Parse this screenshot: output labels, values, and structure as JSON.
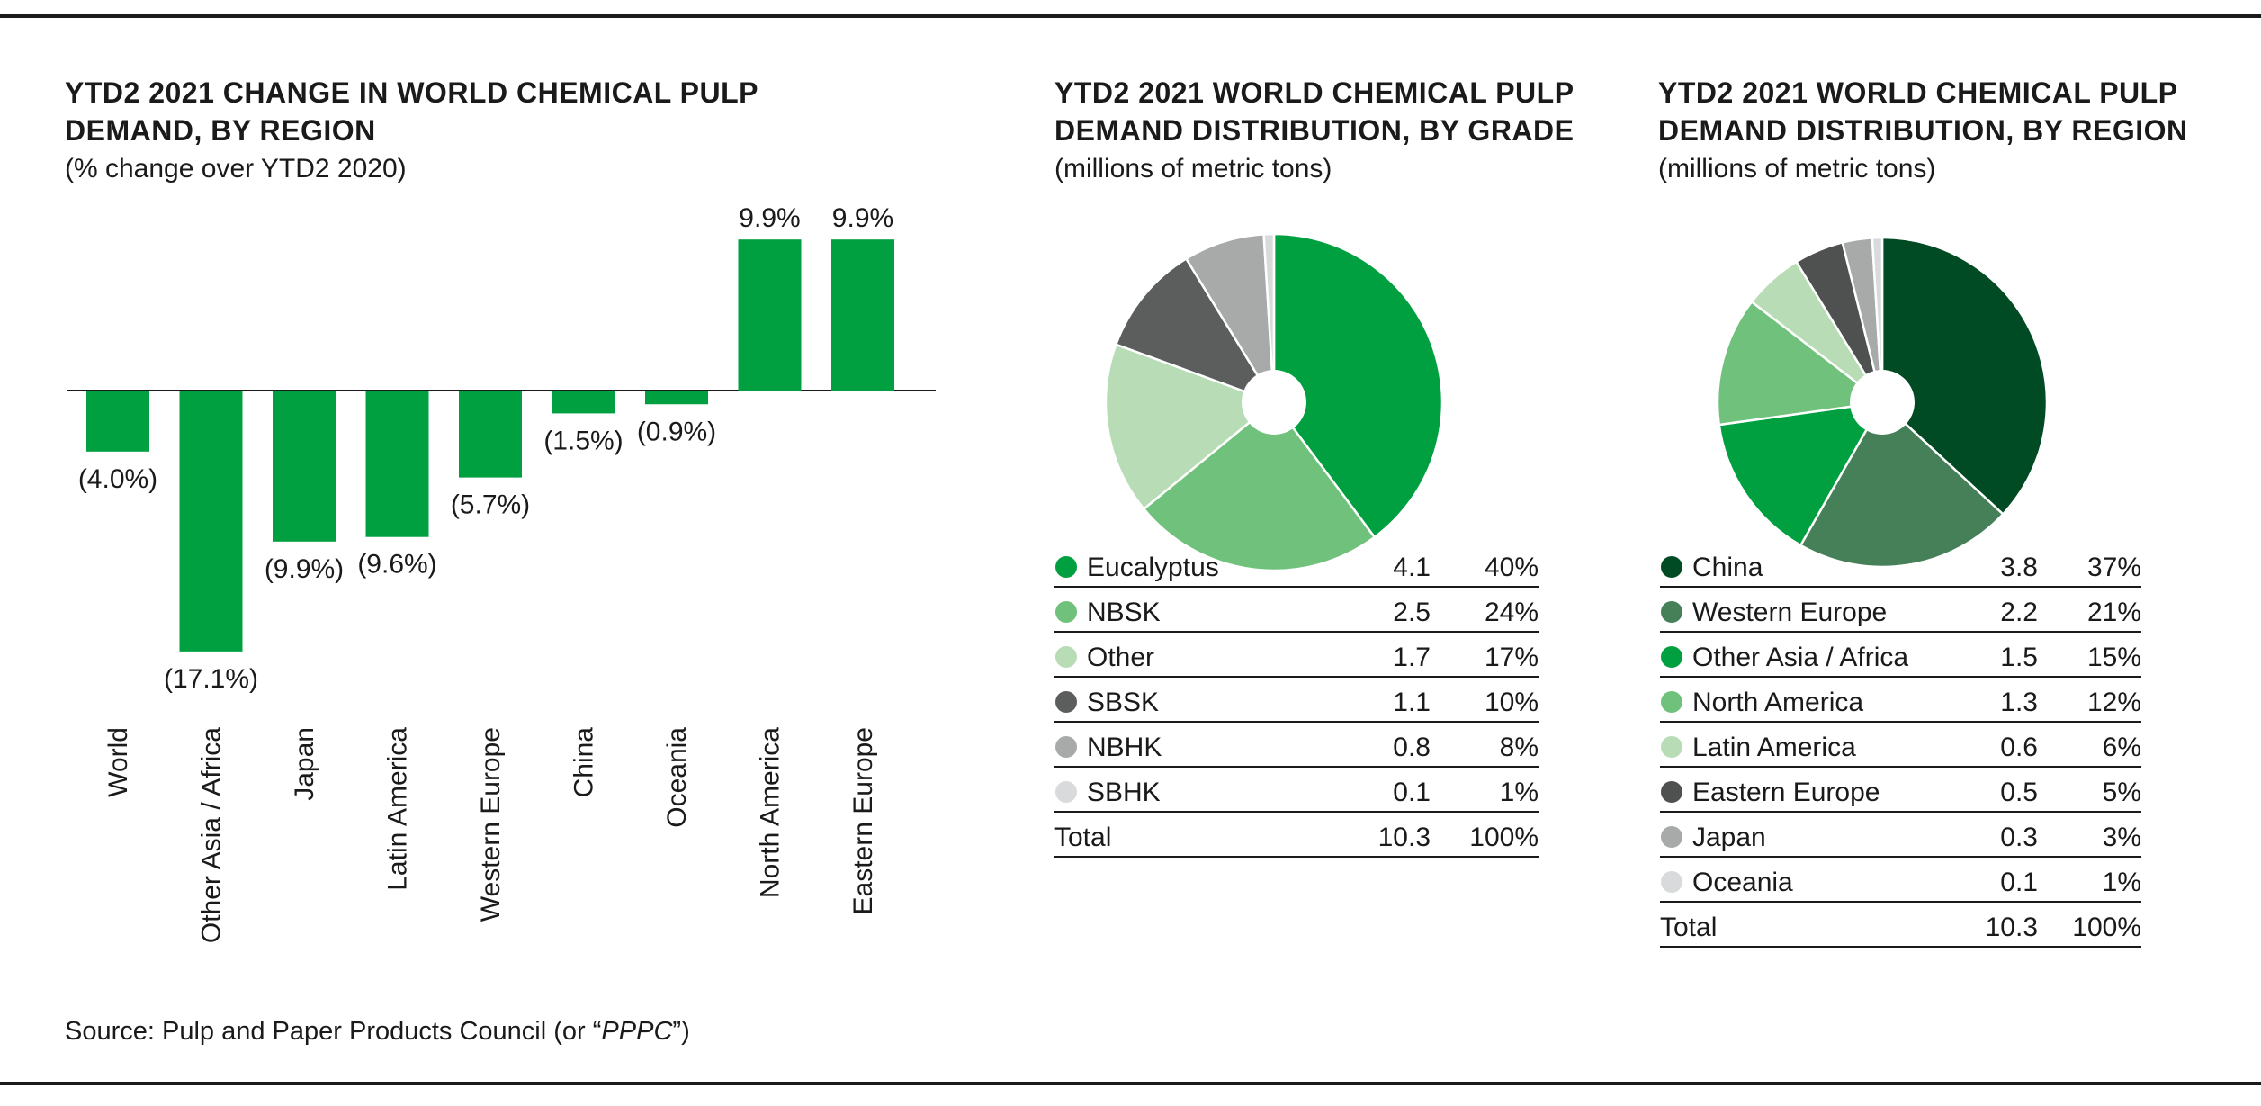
{
  "colors": {
    "bar": "#00a040",
    "rule": "#1a1a1a",
    "grade": [
      "#00a040",
      "#70c17b",
      "#b8dcb5",
      "#5b5e5d",
      "#a8aaa9",
      "#d9dadb"
    ],
    "region": [
      "#004b23",
      "#468058",
      "#00a040",
      "#70c17b",
      "#b8dcb5",
      "#4f5150",
      "#a8aaa9",
      "#d9dadb"
    ]
  },
  "chart_data": [
    {
      "type": "bar",
      "title_lines": [
        "YTD2 2021 CHANGE IN WORLD CHEMICAL PULP",
        "DEMAND, BY REGION"
      ],
      "subtitle": "(% change over YTD2 2020)",
      "categories": [
        "World",
        "Other Asia / Africa",
        "Japan",
        "Latin America",
        "Western Europe",
        "China",
        "Oceania",
        "North America",
        "Eastern Europe"
      ],
      "values": [
        -4.0,
        -17.1,
        -9.9,
        -9.6,
        -5.7,
        -1.5,
        -0.9,
        9.9,
        9.9
      ],
      "data_labels": [
        "(4.0%)",
        "(17.1%)",
        "(9.9%)",
        "(9.6%)",
        "(5.7%)",
        "(1.5%)",
        "(0.9%)",
        "9.9%",
        "9.9%"
      ],
      "ylim": [
        -17.1,
        9.9
      ],
      "grid": false
    },
    {
      "type": "pie",
      "title_lines": [
        "YTD2 2021 WORLD CHEMICAL PULP",
        "DEMAND DISTRIBUTION, BY GRADE"
      ],
      "subtitle": "(millions of metric tons)",
      "labels": [
        "Eucalyptus",
        "NBSK",
        "Other",
        "SBSK",
        "NBHK",
        "SBHK"
      ],
      "values": [
        4.1,
        2.5,
        1.7,
        1.1,
        0.8,
        0.1
      ],
      "value_labels": [
        "4.1",
        "2.5",
        "1.7",
        "1.1",
        "0.8",
        "0.1"
      ],
      "percents": [
        "40%",
        "24%",
        "17%",
        "10%",
        "8%",
        "1%"
      ],
      "total_label": "Total",
      "total_value": "10.3",
      "total_percent": "100%"
    },
    {
      "type": "pie",
      "title_lines": [
        "YTD2 2021 WORLD CHEMICAL PULP",
        "DEMAND DISTRIBUTION, BY REGION"
      ],
      "subtitle": "(millions of metric tons)",
      "labels": [
        "China",
        "Western Europe",
        "Other Asia / Africa",
        "North America",
        "Latin America",
        "Eastern Europe",
        "Japan",
        "Oceania"
      ],
      "values": [
        3.8,
        2.2,
        1.5,
        1.3,
        0.6,
        0.5,
        0.3,
        0.1
      ],
      "value_labels": [
        "3.8",
        "2.2",
        "1.5",
        "1.3",
        "0.6",
        "0.5",
        "0.3",
        "0.1"
      ],
      "percents": [
        "37%",
        "21%",
        "15%",
        "12%",
        "6%",
        "5%",
        "3%",
        "1%"
      ],
      "total_label": "Total",
      "total_value": "10.3",
      "total_percent": "100%"
    }
  ],
  "source": {
    "prefix": "Source: Pulp and Paper Products Council (or “",
    "abbr": "PPPC",
    "suffix": "”)"
  }
}
